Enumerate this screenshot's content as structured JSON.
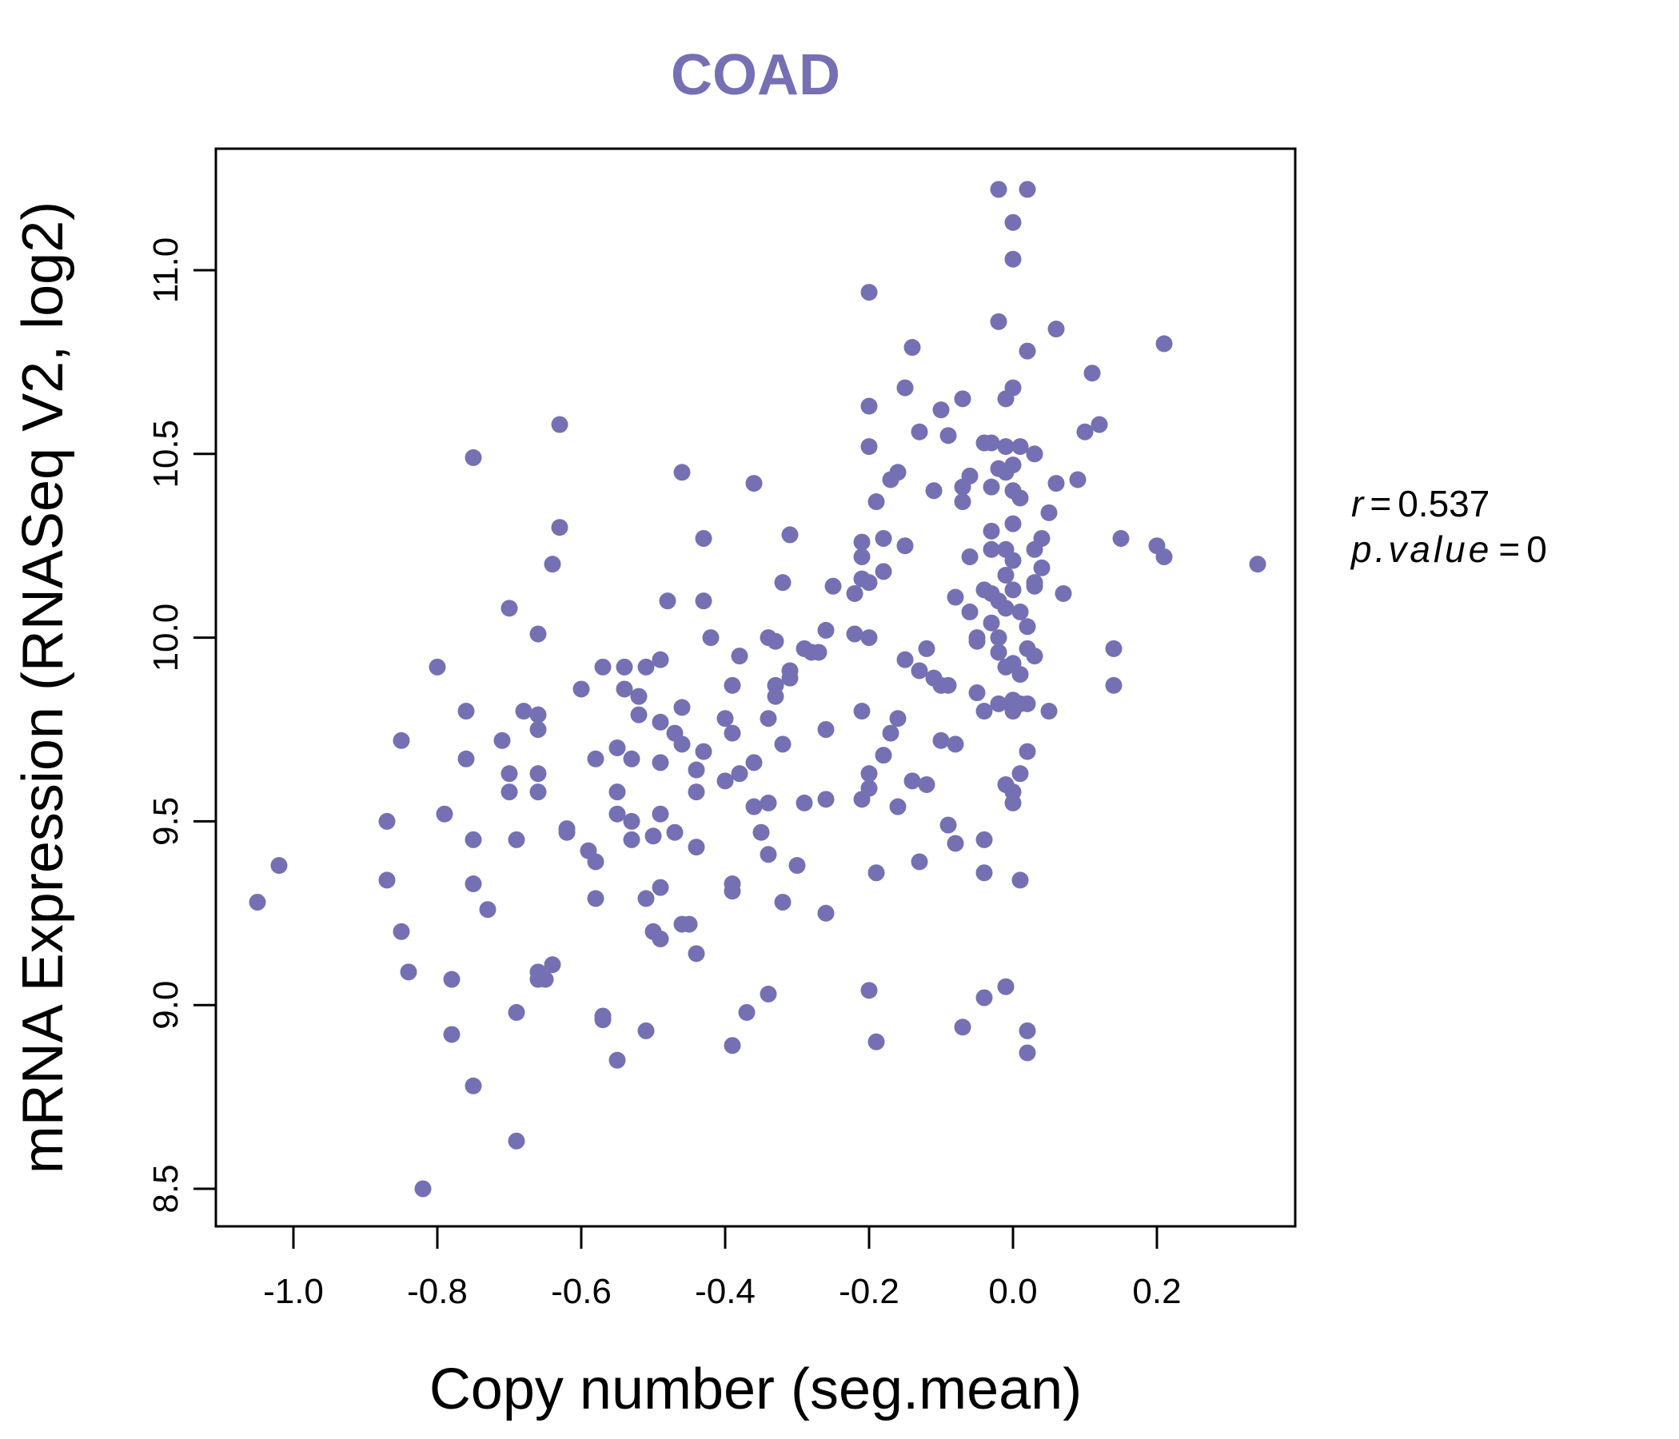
{
  "chart_data": {
    "type": "scatter",
    "title": "COAD",
    "xlabel": "Copy number (seg.mean)",
    "ylabel": "mRNA Expression (RNASeq V2, log2)",
    "xlim": [
      -1.1,
      0.4
    ],
    "ylim": [
      8.45,
      11.35
    ],
    "x_ticks": [
      -1.0,
      -0.8,
      -0.6,
      -0.4,
      -0.2,
      0.0,
      0.2
    ],
    "x_tick_labels": [
      "-1.0",
      "-0.8",
      "-0.6",
      "-0.4",
      "-0.2",
      "0.0",
      "0.2"
    ],
    "y_ticks": [
      8.5,
      9.0,
      9.5,
      10.0,
      10.5,
      11.0
    ],
    "y_tick_labels": [
      "8.5",
      "9.0",
      "9.5",
      "10.0",
      "10.5",
      "11.0"
    ],
    "point_color": "#7570b3",
    "grid": false,
    "stats": {
      "r_label": "r",
      "r_value": "0.537",
      "p_label": "p.value",
      "p_value": "0"
    },
    "points": [
      [
        -1.05,
        9.28
      ],
      [
        -1.02,
        9.38
      ],
      [
        -0.87,
        9.5
      ],
      [
        -0.87,
        9.34
      ],
      [
        -0.85,
        9.72
      ],
      [
        -0.85,
        9.2
      ],
      [
        -0.84,
        9.09
      ],
      [
        -0.82,
        8.5
      ],
      [
        -0.8,
        9.92
      ],
      [
        -0.79,
        9.52
      ],
      [
        -0.78,
        9.07
      ],
      [
        -0.78,
        8.92
      ],
      [
        -0.76,
        9.8
      ],
      [
        -0.76,
        9.67
      ],
      [
        -0.75,
        10.49
      ],
      [
        -0.75,
        9.45
      ],
      [
        -0.75,
        9.33
      ],
      [
        -0.75,
        8.78
      ],
      [
        -0.73,
        9.26
      ],
      [
        -0.71,
        9.72
      ],
      [
        -0.7,
        10.08
      ],
      [
        -0.7,
        9.63
      ],
      [
        -0.7,
        9.58
      ],
      [
        -0.69,
        9.45
      ],
      [
        -0.69,
        8.98
      ],
      [
        -0.69,
        8.63
      ],
      [
        -0.68,
        9.8
      ],
      [
        -0.66,
        10.01
      ],
      [
        -0.66,
        9.79
      ],
      [
        -0.66,
        9.75
      ],
      [
        -0.66,
        9.63
      ],
      [
        -0.66,
        9.58
      ],
      [
        -0.66,
        9.09
      ],
      [
        -0.66,
        9.07
      ],
      [
        -0.65,
        9.07
      ],
      [
        -0.64,
        10.2
      ],
      [
        -0.64,
        9.11
      ],
      [
        -0.63,
        10.58
      ],
      [
        -0.63,
        10.3
      ],
      [
        -0.62,
        9.48
      ],
      [
        -0.62,
        9.47
      ],
      [
        -0.6,
        9.86
      ],
      [
        -0.59,
        9.42
      ],
      [
        -0.58,
        9.67
      ],
      [
        -0.58,
        9.39
      ],
      [
        -0.58,
        9.29
      ],
      [
        -0.57,
        9.92
      ],
      [
        -0.57,
        8.97
      ],
      [
        -0.57,
        8.96
      ],
      [
        -0.55,
        9.7
      ],
      [
        -0.55,
        9.58
      ],
      [
        -0.55,
        9.52
      ],
      [
        -0.55,
        8.85
      ],
      [
        -0.54,
        9.92
      ],
      [
        -0.54,
        9.86
      ],
      [
        -0.53,
        9.67
      ],
      [
        -0.53,
        9.5
      ],
      [
        -0.53,
        9.45
      ],
      [
        -0.52,
        9.84
      ],
      [
        -0.52,
        9.79
      ],
      [
        -0.51,
        9.92
      ],
      [
        -0.51,
        9.29
      ],
      [
        -0.51,
        8.93
      ],
      [
        -0.5,
        9.2
      ],
      [
        -0.5,
        9.46
      ],
      [
        -0.49,
        9.94
      ],
      [
        -0.49,
        9.77
      ],
      [
        -0.49,
        9.66
      ],
      [
        -0.49,
        9.52
      ],
      [
        -0.49,
        9.32
      ],
      [
        -0.49,
        9.18
      ],
      [
        -0.48,
        10.1
      ],
      [
        -0.47,
        9.74
      ],
      [
        -0.47,
        9.47
      ],
      [
        -0.46,
        10.45
      ],
      [
        -0.46,
        9.71
      ],
      [
        -0.46,
        9.81
      ],
      [
        -0.46,
        9.22
      ],
      [
        -0.45,
        9.22
      ],
      [
        -0.44,
        9.64
      ],
      [
        -0.44,
        9.58
      ],
      [
        -0.44,
        9.43
      ],
      [
        -0.44,
        9.14
      ],
      [
        -0.43,
        10.27
      ],
      [
        -0.43,
        10.1
      ],
      [
        -0.43,
        9.69
      ],
      [
        -0.42,
        10.0
      ],
      [
        -0.4,
        9.78
      ],
      [
        -0.4,
        9.61
      ],
      [
        -0.39,
        9.87
      ],
      [
        -0.39,
        9.74
      ],
      [
        -0.39,
        9.33
      ],
      [
        -0.39,
        9.31
      ],
      [
        -0.39,
        8.89
      ],
      [
        -0.38,
        9.95
      ],
      [
        -0.38,
        9.63
      ],
      [
        -0.37,
        8.98
      ],
      [
        -0.36,
        10.42
      ],
      [
        -0.36,
        9.66
      ],
      [
        -0.36,
        9.54
      ],
      [
        -0.35,
        9.47
      ],
      [
        -0.34,
        10.0
      ],
      [
        -0.34,
        9.78
      ],
      [
        -0.34,
        9.55
      ],
      [
        -0.34,
        9.41
      ],
      [
        -0.34,
        9.03
      ],
      [
        -0.33,
        9.99
      ],
      [
        -0.33,
        9.87
      ],
      [
        -0.33,
        9.84
      ],
      [
        -0.32,
        9.71
      ],
      [
        -0.32,
        9.28
      ],
      [
        -0.32,
        10.15
      ],
      [
        -0.31,
        10.28
      ],
      [
        -0.31,
        9.91
      ],
      [
        -0.31,
        9.89
      ],
      [
        -0.3,
        9.38
      ],
      [
        -0.29,
        9.97
      ],
      [
        -0.29,
        9.55
      ],
      [
        -0.28,
        9.96
      ],
      [
        -0.27,
        9.96
      ],
      [
        -0.26,
        10.02
      ],
      [
        -0.26,
        9.75
      ],
      [
        -0.26,
        9.56
      ],
      [
        -0.26,
        9.25
      ],
      [
        -0.25,
        10.14
      ],
      [
        -0.22,
        10.12
      ],
      [
        -0.22,
        10.01
      ],
      [
        -0.21,
        10.26
      ],
      [
        -0.21,
        10.22
      ],
      [
        -0.21,
        10.16
      ],
      [
        -0.21,
        9.8
      ],
      [
        -0.21,
        9.56
      ],
      [
        -0.2,
        10.94
      ],
      [
        -0.2,
        10.63
      ],
      [
        -0.2,
        10.52
      ],
      [
        -0.2,
        9.63
      ],
      [
        -0.2,
        9.59
      ],
      [
        -0.2,
        9.04
      ],
      [
        -0.2,
        10.15
      ],
      [
        -0.2,
        10.0
      ],
      [
        -0.19,
        10.37
      ],
      [
        -0.19,
        8.9
      ],
      [
        -0.19,
        9.36
      ],
      [
        -0.18,
        9.68
      ],
      [
        -0.18,
        10.27
      ],
      [
        -0.18,
        10.18
      ],
      [
        -0.17,
        9.74
      ],
      [
        -0.17,
        10.43
      ],
      [
        -0.16,
        10.45
      ],
      [
        -0.16,
        9.78
      ],
      [
        -0.16,
        9.54
      ],
      [
        -0.15,
        10.25
      ],
      [
        -0.15,
        10.68
      ],
      [
        -0.15,
        9.94
      ],
      [
        -0.14,
        9.61
      ],
      [
        -0.14,
        10.79
      ],
      [
        -0.13,
        10.56
      ],
      [
        -0.13,
        9.91
      ],
      [
        -0.13,
        9.39
      ],
      [
        -0.12,
        9.97
      ],
      [
        -0.12,
        9.6
      ],
      [
        -0.11,
        10.4
      ],
      [
        -0.11,
        9.89
      ],
      [
        -0.1,
        10.62
      ],
      [
        -0.1,
        9.87
      ],
      [
        -0.1,
        9.72
      ],
      [
        -0.09,
        9.87
      ],
      [
        -0.09,
        10.55
      ],
      [
        -0.09,
        9.49
      ],
      [
        -0.08,
        10.11
      ],
      [
        -0.08,
        9.44
      ],
      [
        -0.08,
        9.71
      ],
      [
        -0.07,
        10.37
      ],
      [
        -0.07,
        10.41
      ],
      [
        -0.07,
        10.65
      ],
      [
        -0.07,
        8.94
      ],
      [
        -0.06,
        10.44
      ],
      [
        -0.06,
        10.22
      ],
      [
        -0.06,
        10.07
      ],
      [
        -0.05,
        10.0
      ],
      [
        -0.05,
        9.99
      ],
      [
        -0.05,
        9.85
      ],
      [
        -0.04,
        10.53
      ],
      [
        -0.04,
        10.13
      ],
      [
        -0.04,
        9.8
      ],
      [
        -0.04,
        9.45
      ],
      [
        -0.04,
        9.36
      ],
      [
        -0.04,
        9.02
      ],
      [
        -0.03,
        10.53
      ],
      [
        -0.03,
        10.41
      ],
      [
        -0.03,
        10.29
      ],
      [
        -0.03,
        10.24
      ],
      [
        -0.03,
        10.12
      ],
      [
        -0.03,
        10.04
      ],
      [
        -0.02,
        10.46
      ],
      [
        -0.02,
        10.86
      ],
      [
        -0.02,
        10.0
      ],
      [
        -0.02,
        9.96
      ],
      [
        -0.02,
        11.22
      ],
      [
        -0.02,
        10.1
      ],
      [
        -0.02,
        9.82
      ],
      [
        -0.01,
        10.65
      ],
      [
        -0.01,
        10.52
      ],
      [
        -0.01,
        10.24
      ],
      [
        -0.01,
        10.08
      ],
      [
        -0.01,
        9.92
      ],
      [
        -0.01,
        9.6
      ],
      [
        -0.01,
        9.05
      ],
      [
        -0.01,
        10.17
      ],
      [
        -0.01,
        10.45
      ],
      [
        0.0,
        10.4
      ],
      [
        0.0,
        10.31
      ],
      [
        0.0,
        10.21
      ],
      [
        0.0,
        10.13
      ],
      [
        0.0,
        9.93
      ],
      [
        0.0,
        9.83
      ],
      [
        0.0,
        9.8
      ],
      [
        0.0,
        9.58
      ],
      [
        0.0,
        9.55
      ],
      [
        0.0,
        11.13
      ],
      [
        0.0,
        11.03
      ],
      [
        0.0,
        10.68
      ],
      [
        0.0,
        10.47
      ],
      [
        0.01,
        10.38
      ],
      [
        0.01,
        10.07
      ],
      [
        0.01,
        9.9
      ],
      [
        0.01,
        9.82
      ],
      [
        0.01,
        9.63
      ],
      [
        0.01,
        9.34
      ],
      [
        0.01,
        10.52
      ],
      [
        0.02,
        11.22
      ],
      [
        0.02,
        10.78
      ],
      [
        0.02,
        10.03
      ],
      [
        0.02,
        9.97
      ],
      [
        0.02,
        9.69
      ],
      [
        0.02,
        9.82
      ],
      [
        0.02,
        8.93
      ],
      [
        0.02,
        8.87
      ],
      [
        0.03,
        10.5
      ],
      [
        0.03,
        10.24
      ],
      [
        0.03,
        10.14
      ],
      [
        0.03,
        10.15
      ],
      [
        0.03,
        9.95
      ],
      [
        0.04,
        10.27
      ],
      [
        0.04,
        10.19
      ],
      [
        0.05,
        10.34
      ],
      [
        0.05,
        9.8
      ],
      [
        0.06,
        10.84
      ],
      [
        0.06,
        10.42
      ],
      [
        0.07,
        10.12
      ],
      [
        0.09,
        10.43
      ],
      [
        0.1,
        10.56
      ],
      [
        0.11,
        10.72
      ],
      [
        0.12,
        10.58
      ],
      [
        0.14,
        9.97
      ],
      [
        0.14,
        9.87
      ],
      [
        0.15,
        10.27
      ],
      [
        0.2,
        10.25
      ],
      [
        0.21,
        10.22
      ],
      [
        0.21,
        10.8
      ],
      [
        0.34,
        10.2
      ]
    ]
  }
}
